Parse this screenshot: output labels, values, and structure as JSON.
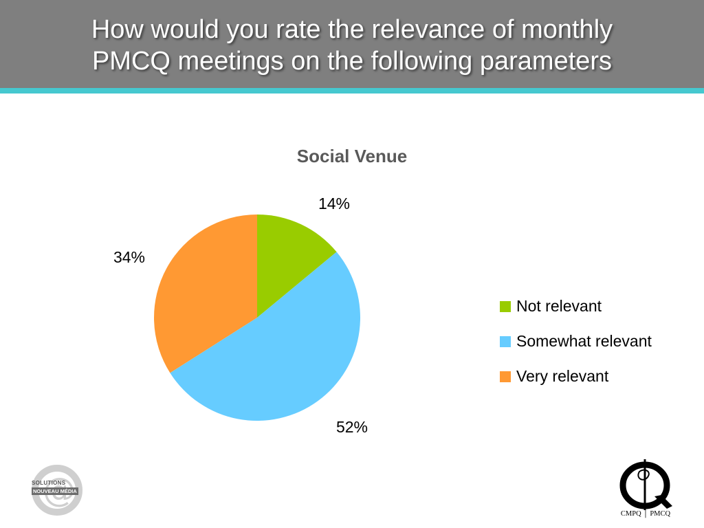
{
  "slide": {
    "title_line1": "How would you rate the relevance of monthly",
    "title_line2": "PMCQ meetings on the following parameters"
  },
  "chart_data": {
    "type": "pie",
    "title": "Social Venue",
    "categories": [
      "Not relevant",
      "Somewhat relevant",
      "Very relevant"
    ],
    "values": [
      14,
      52,
      34
    ],
    "labels": [
      "14%",
      "52%",
      "34%"
    ],
    "unit": "%",
    "colors": [
      "#99cc00",
      "#66ccff",
      "#ff9933"
    ],
    "legend_position": "right"
  },
  "logos": {
    "left_line1": "SOLUTIONS",
    "left_line2": "NOUVEAU MÉDIA",
    "right_caption": "CMPQ │ PMCQ"
  },
  "colors": {
    "header_bg": "#7f7f7f",
    "header_stripe": "#45c8cf"
  }
}
